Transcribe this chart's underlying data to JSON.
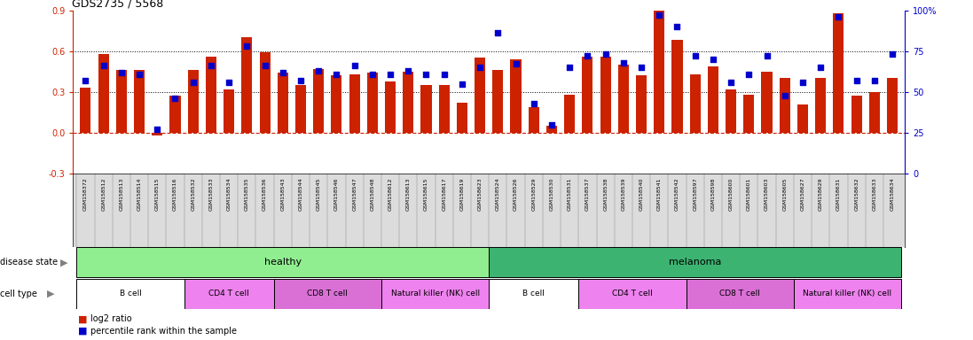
{
  "title": "GDS2735 / 5568",
  "samples": [
    "GSM158372",
    "GSM158512",
    "GSM158513",
    "GSM158514",
    "GSM158515",
    "GSM158516",
    "GSM158532",
    "GSM158533",
    "GSM158534",
    "GSM158535",
    "GSM158536",
    "GSM158543",
    "GSM158544",
    "GSM158545",
    "GSM158546",
    "GSM158547",
    "GSM158548",
    "GSM158612",
    "GSM158613",
    "GSM158615",
    "GSM158617",
    "GSM158619",
    "GSM158623",
    "GSM158524",
    "GSM158526",
    "GSM158529",
    "GSM158530",
    "GSM158531",
    "GSM158537",
    "GSM158538",
    "GSM158539",
    "GSM158540",
    "GSM158541",
    "GSM158542",
    "GSM158597",
    "GSM158598",
    "GSM158600",
    "GSM158601",
    "GSM158603",
    "GSM158605",
    "GSM158627",
    "GSM158629",
    "GSM158631",
    "GSM158632",
    "GSM158633",
    "GSM158634"
  ],
  "log2_ratio": [
    0.33,
    0.58,
    0.46,
    0.46,
    -0.02,
    0.27,
    0.46,
    0.56,
    0.32,
    0.7,
    0.59,
    0.44,
    0.35,
    0.47,
    0.42,
    0.43,
    0.44,
    0.38,
    0.45,
    0.35,
    0.35,
    0.22,
    0.55,
    0.46,
    0.54,
    0.19,
    0.05,
    0.28,
    0.56,
    0.56,
    0.5,
    0.42,
    0.94,
    0.68,
    0.43,
    0.49,
    0.32,
    0.28,
    0.45,
    0.4,
    0.21,
    0.4,
    0.88,
    0.27,
    0.3,
    0.4
  ],
  "percentile_rank": [
    57,
    66,
    62,
    61,
    27,
    46,
    56,
    66,
    56,
    78,
    66,
    62,
    57,
    63,
    61,
    66,
    61,
    61,
    63,
    61,
    61,
    55,
    65,
    86,
    67,
    43,
    30,
    65,
    72,
    73,
    68,
    65,
    97,
    90,
    72,
    70,
    56,
    61,
    72,
    48,
    56,
    65,
    96,
    57,
    57,
    73
  ],
  "disease_state": [
    "healthy",
    "healthy",
    "healthy",
    "healthy",
    "healthy",
    "healthy",
    "healthy",
    "healthy",
    "healthy",
    "healthy",
    "healthy",
    "healthy",
    "healthy",
    "healthy",
    "healthy",
    "healthy",
    "healthy",
    "healthy",
    "healthy",
    "healthy",
    "healthy",
    "healthy",
    "healthy",
    "melanoma",
    "melanoma",
    "melanoma",
    "melanoma",
    "melanoma",
    "melanoma",
    "melanoma",
    "melanoma",
    "melanoma",
    "melanoma",
    "melanoma",
    "melanoma",
    "melanoma",
    "melanoma",
    "melanoma",
    "melanoma",
    "melanoma",
    "melanoma",
    "melanoma",
    "melanoma",
    "melanoma",
    "melanoma",
    "melanoma"
  ],
  "cell_type": [
    "B cell",
    "B cell",
    "B cell",
    "B cell",
    "B cell",
    "B cell",
    "CD4 T cell",
    "CD4 T cell",
    "CD4 T cell",
    "CD4 T cell",
    "CD4 T cell",
    "CD8 T cell",
    "CD8 T cell",
    "CD8 T cell",
    "CD8 T cell",
    "CD8 T cell",
    "CD8 T cell",
    "Natural killer (NK) cell",
    "Natural killer (NK) cell",
    "Natural killer (NK) cell",
    "Natural killer (NK) cell",
    "Natural killer (NK) cell",
    "Natural killer (NK) cell",
    "B cell",
    "B cell",
    "B cell",
    "B cell",
    "B cell",
    "CD4 T cell",
    "CD4 T cell",
    "CD4 T cell",
    "CD4 T cell",
    "CD4 T cell",
    "CD4 T cell",
    "CD8 T cell",
    "CD8 T cell",
    "CD8 T cell",
    "CD8 T cell",
    "CD8 T cell",
    "CD8 T cell",
    "Natural killer (NK) cell",
    "Natural killer (NK) cell",
    "Natural killer (NK) cell",
    "Natural killer (NK) cell",
    "Natural killer (NK) cell",
    "Natural killer (NK) cell"
  ],
  "ylim_left": [
    -0.3,
    0.9
  ],
  "ylim_right": [
    0,
    100
  ],
  "bar_color": "#CC2200",
  "dot_color": "#0000CC",
  "healthy_color": "#90EE90",
  "melanoma_color": "#3CB371",
  "bcell_color": "#FFFFFF",
  "cd4_color": "#EE82EE",
  "cd8_color": "#DA70D6",
  "nk_color": "#EE82EE",
  "xtick_bg": "#DCDCDC"
}
